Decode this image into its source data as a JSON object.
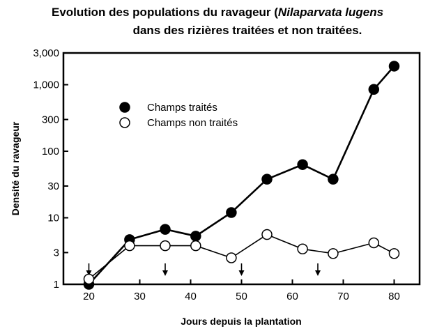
{
  "chart_data": {
    "type": "line",
    "title": {
      "line1_prefix": "Evolution des populations du ravageur (",
      "line1_italic": "Nilaparvata lugens",
      "line2": "dans des rizières traitées et non traitées."
    },
    "xlabel": "Jours depuis la plantation",
    "ylabel": "Densité du ravageur",
    "xlim": [
      15,
      85
    ],
    "ylim": [
      1,
      3000
    ],
    "y_scale": "log",
    "x_ticks": [
      {
        "value": 20,
        "label": "20"
      },
      {
        "value": 30,
        "label": "30"
      },
      {
        "value": 40,
        "label": "40"
      },
      {
        "value": 50,
        "label": "50"
      },
      {
        "value": 60,
        "label": "60"
      },
      {
        "value": 70,
        "label": "70"
      },
      {
        "value": 80,
        "label": "80"
      }
    ],
    "y_ticks": [
      {
        "value": 1,
        "label": "1"
      },
      {
        "value": 3,
        "label": "3"
      },
      {
        "value": 10,
        "label": "10"
      },
      {
        "value": 30,
        "label": "30"
      },
      {
        "value": 100,
        "label": "100"
      },
      {
        "value": 300,
        "label": "300"
      },
      {
        "value": 1000,
        "label": "1,000"
      },
      {
        "value": 3000,
        "label": "3,000"
      }
    ],
    "grid": false,
    "legend_position": "upper-left",
    "series": [
      {
        "name": "Champs traités",
        "marker": "filled-circle",
        "color": "#000000",
        "points": [
          {
            "x": 20,
            "y": 1
          },
          {
            "x": 28,
            "y": 4.7
          },
          {
            "x": 35,
            "y": 6.7
          },
          {
            "x": 41,
            "y": 5.3
          },
          {
            "x": 48,
            "y": 12
          },
          {
            "x": 55,
            "y": 38
          },
          {
            "x": 62,
            "y": 63
          },
          {
            "x": 68,
            "y": 38
          },
          {
            "x": 76,
            "y": 850
          },
          {
            "x": 80,
            "y": 1900
          }
        ]
      },
      {
        "name": "Champs non traités",
        "marker": "open-circle",
        "color": "#000000",
        "points": [
          {
            "x": 20,
            "y": 1.2
          },
          {
            "x": 28,
            "y": 3.8
          },
          {
            "x": 35,
            "y": 3.8
          },
          {
            "x": 41,
            "y": 3.8
          },
          {
            "x": 48,
            "y": 2.5
          },
          {
            "x": 55,
            "y": 5.6
          },
          {
            "x": 62,
            "y": 3.4
          },
          {
            "x": 68,
            "y": 2.9
          },
          {
            "x": 76,
            "y": 4.2
          },
          {
            "x": 80,
            "y": 2.9
          }
        ]
      }
    ],
    "annotations": {
      "insecticide_application_days": [
        20,
        35,
        50,
        65
      ]
    }
  }
}
